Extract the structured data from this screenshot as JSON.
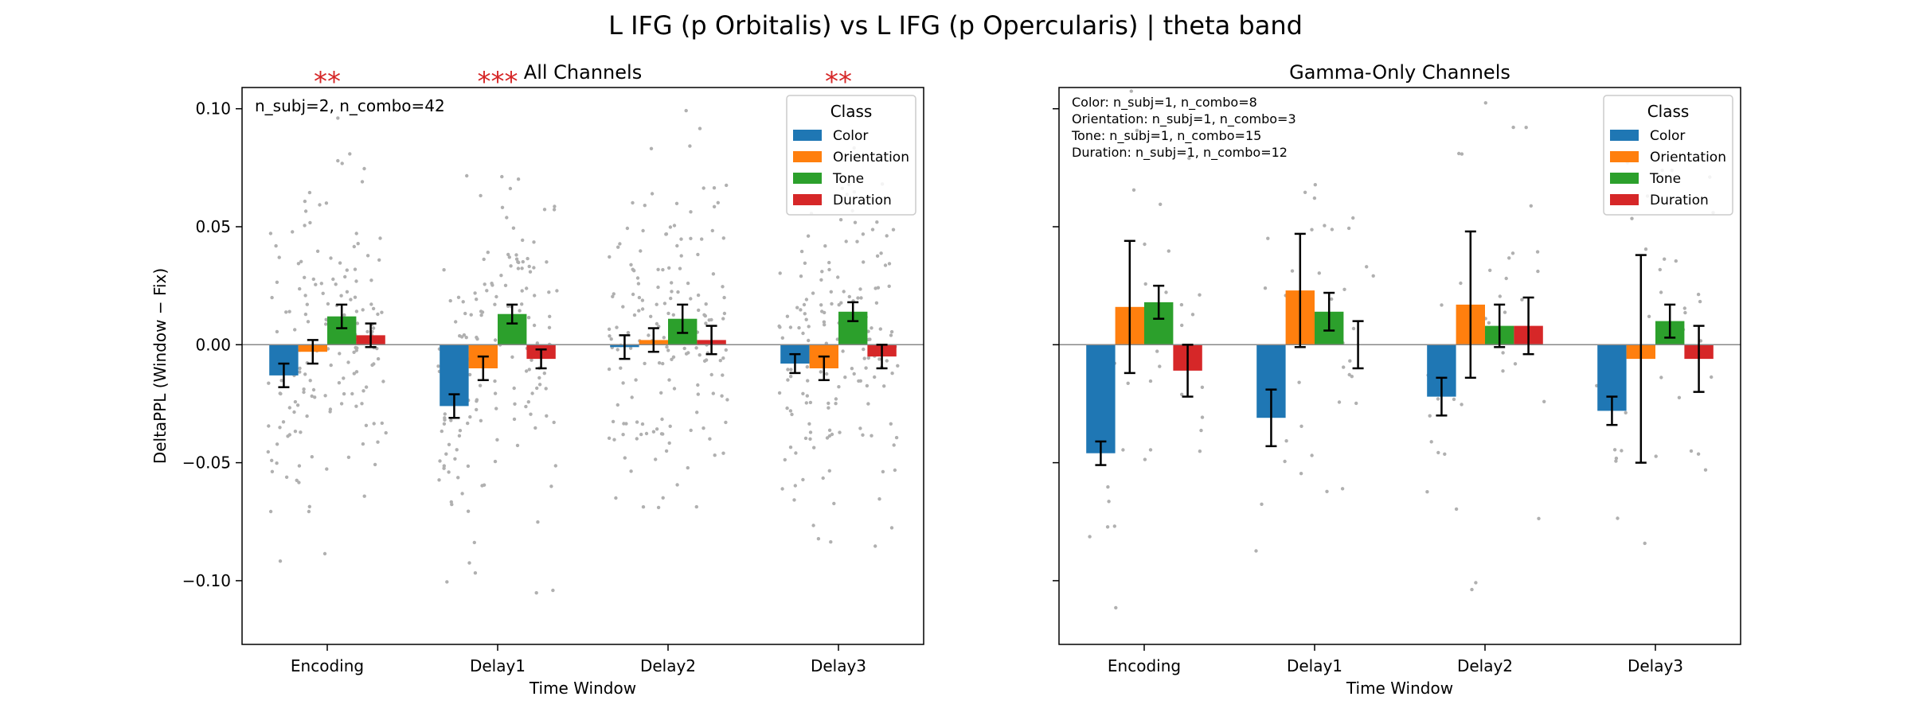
{
  "figure": {
    "suptitle": "L IFG (p Orbitalis) vs L IFG (p Opercularis)  |  theta band"
  },
  "colors": {
    "Color": "#1f77b4",
    "Orientation": "#ff7f0e",
    "Tone": "#2ca02c",
    "Duration": "#d62728",
    "significance": "#d62728",
    "scatter": "#b0b0b0"
  },
  "chart_data": [
    {
      "type": "bar",
      "title": "All Channels",
      "xlabel": "Time Window",
      "ylabel": "DeltaPPL (Window − Fix)",
      "ylim": [
        -0.127,
        0.109
      ],
      "yticks": [
        0.1,
        0.05,
        0.0,
        -0.05,
        -0.1
      ],
      "ytick_labels": [
        "0.10",
        "0.05",
        "0.00",
        "−0.05",
        "−0.10"
      ],
      "categories": [
        "Encoding",
        "Delay1",
        "Delay2",
        "Delay3"
      ],
      "series": [
        {
          "name": "Color",
          "values": [
            -0.013,
            -0.026,
            -0.001,
            -0.008
          ],
          "errors": [
            0.005,
            0.005,
            0.005,
            0.004
          ]
        },
        {
          "name": "Orientation",
          "values": [
            -0.003,
            -0.01,
            0.002,
            -0.01
          ],
          "errors": [
            0.005,
            0.005,
            0.005,
            0.005
          ]
        },
        {
          "name": "Tone",
          "values": [
            0.012,
            0.013,
            0.011,
            0.014
          ],
          "errors": [
            0.005,
            0.004,
            0.006,
            0.004
          ]
        },
        {
          "name": "Duration",
          "values": [
            0.004,
            -0.006,
            0.002,
            -0.005
          ],
          "errors": [
            0.005,
            0.004,
            0.006,
            0.005
          ]
        }
      ],
      "significance": [
        "**",
        "***",
        "",
        "**"
      ],
      "annotation": [
        "n_subj=2, n_combo=42"
      ],
      "legend": {
        "title": "Class",
        "placement": "top-right",
        "entries": [
          "Color",
          "Orientation",
          "Tone",
          "Duration"
        ]
      },
      "grid": false,
      "zero_line": true,
      "scatter": "individual combos shown as gray points"
    },
    {
      "type": "bar",
      "title": "Gamma-Only Channels",
      "xlabel": "Time Window",
      "ylabel": "",
      "ylim": [
        -0.127,
        0.109
      ],
      "yticks": [
        0.1,
        0.05,
        0.0,
        -0.05,
        -0.1
      ],
      "ytick_labels": [],
      "categories": [
        "Encoding",
        "Delay1",
        "Delay2",
        "Delay3"
      ],
      "series": [
        {
          "name": "Color",
          "values": [
            -0.046,
            -0.031,
            -0.022,
            -0.028
          ],
          "errors": [
            0.005,
            0.012,
            0.008,
            0.006
          ]
        },
        {
          "name": "Orientation",
          "values": [
            0.016,
            0.023,
            0.017,
            -0.006
          ],
          "errors": [
            0.028,
            0.024,
            0.031,
            0.044
          ]
        },
        {
          "name": "Tone",
          "values": [
            0.018,
            0.014,
            0.008,
            0.01
          ],
          "errors": [
            0.007,
            0.008,
            0.009,
            0.007
          ]
        },
        {
          "name": "Duration",
          "values": [
            -0.011,
            0.0,
            0.008,
            -0.006
          ],
          "errors": [
            0.011,
            0.01,
            0.012,
            0.014
          ]
        }
      ],
      "significance": [
        "",
        "",
        "",
        ""
      ],
      "annotation": [
        "Color: n_subj=1, n_combo=8",
        "Orientation: n_subj=1, n_combo=3",
        "Tone: n_subj=1, n_combo=15",
        "Duration: n_subj=1, n_combo=12"
      ],
      "legend": {
        "title": "Class",
        "placement": "top-right",
        "entries": [
          "Color",
          "Orientation",
          "Tone",
          "Duration"
        ]
      },
      "grid": false,
      "zero_line": true,
      "scatter": "individual combos shown as gray points"
    }
  ]
}
